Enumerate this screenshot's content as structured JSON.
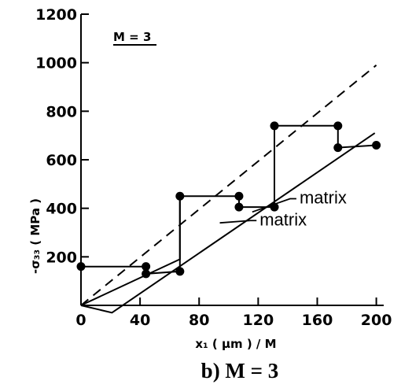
{
  "chart_data": {
    "type": "line",
    "title": "",
    "inset_label": "M = 3",
    "caption": "b)  M = 3",
    "xlabel": "x₁ ( μm ) / M",
    "ylabel": "-σ₃₃ ( MPa )",
    "xlim": [
      0,
      205
    ],
    "ylim": [
      0,
      1200
    ],
    "x_ticks": [
      0,
      40,
      80,
      120,
      160,
      200
    ],
    "y_ticks": [
      200,
      400,
      600,
      800,
      1000,
      1200
    ],
    "grid": false,
    "series": [
      {
        "style": "solid-with-markers",
        "points": [
          [
            0,
            160
          ],
          [
            44,
            160
          ],
          [
            44,
            130
          ],
          [
            67,
            140
          ],
          [
            67,
            450
          ],
          [
            107,
            450
          ],
          [
            107,
            405
          ],
          [
            131,
            405
          ],
          [
            131,
            740
          ],
          [
            174,
            740
          ],
          [
            174,
            650
          ],
          [
            200,
            660
          ]
        ],
        "markers": [
          [
            0,
            160
          ],
          [
            44,
            160
          ],
          [
            44,
            130
          ],
          [
            67,
            140
          ],
          [
            67,
            450
          ],
          [
            107,
            450
          ],
          [
            107,
            405
          ],
          [
            131,
            405
          ],
          [
            131,
            740
          ],
          [
            174,
            740
          ],
          [
            174,
            650
          ],
          [
            200,
            660
          ]
        ]
      },
      {
        "style": "solid",
        "points": [
          [
            0,
            0
          ],
          [
            21,
            -30
          ],
          [
            199,
            710
          ]
        ]
      },
      {
        "style": "solid",
        "points": [
          [
            0,
            0
          ],
          [
            67,
            190
          ],
          [
            67,
            450
          ]
        ]
      },
      {
        "style": "dashed",
        "points": [
          [
            0,
            0
          ],
          [
            200,
            990
          ]
        ]
      }
    ],
    "annotations": [
      {
        "text": "matrix",
        "x": 121,
        "y": 330,
        "points_to": [
          94,
          340
        ]
      },
      {
        "text": "matrix",
        "x": 148,
        "y": 420,
        "points_to": [
          116,
          385
        ]
      }
    ]
  }
}
